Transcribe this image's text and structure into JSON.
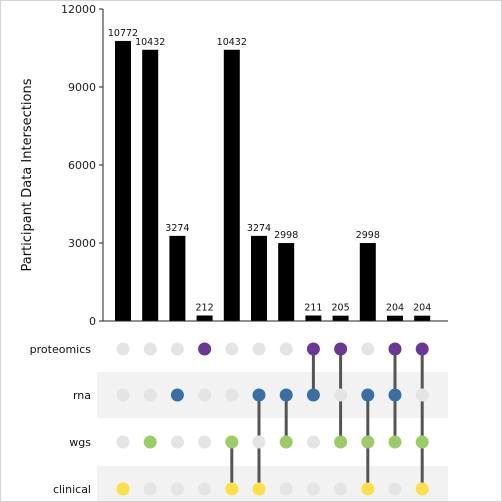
{
  "chart_data": {
    "type": "bar",
    "ylabel": "Participant Data Intersections",
    "ylim": [
      0,
      12000
    ],
    "yticks": [
      0,
      3000,
      6000,
      9000,
      12000
    ],
    "sets": [
      "proteomics",
      "rna",
      "wgs",
      "clinical"
    ],
    "values": [
      10772,
      10432,
      3274,
      212,
      10432,
      3274,
      2998,
      211,
      205,
      2998,
      204,
      204
    ],
    "value_labels": [
      "10772",
      "10432",
      "3274",
      "212",
      "10432",
      "3274",
      "2998",
      "211",
      "205",
      "2998",
      "204",
      "204"
    ],
    "intersections": [
      [
        "clinical"
      ],
      [
        "wgs"
      ],
      [
        "rna"
      ],
      [
        "proteomics"
      ],
      [
        "wgs",
        "clinical"
      ],
      [
        "rna",
        "clinical"
      ],
      [
        "rna",
        "wgs"
      ],
      [
        "proteomics",
        "rna"
      ],
      [
        "proteomics",
        "wgs"
      ],
      [
        "rna",
        "wgs",
        "clinical"
      ],
      [
        "proteomics",
        "rna",
        "wgs"
      ],
      [
        "proteomics",
        "wgs",
        "clinical"
      ]
    ],
    "colors": {
      "bar": "#000000",
      "proteomics": "#6a3797",
      "rna": "#3a6fa6",
      "wgs": "#9ccc65",
      "clinical": "#fde047",
      "inactive_dot": "#e4e4e4",
      "connector": "#555555",
      "row_shade": "#f2f2f2"
    }
  }
}
